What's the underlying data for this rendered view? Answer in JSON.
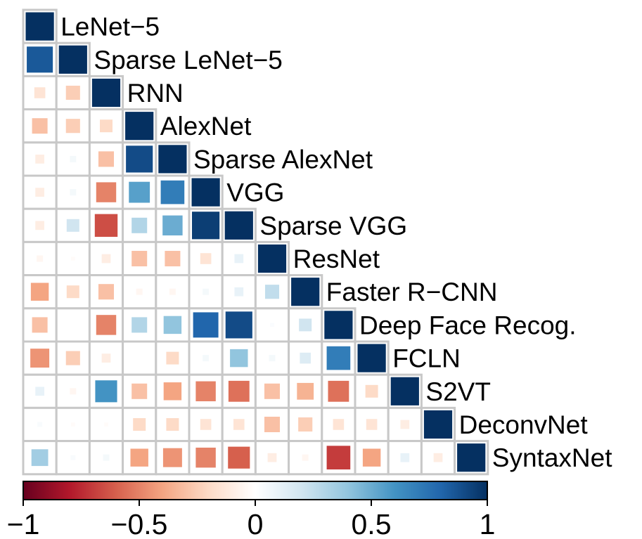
{
  "chart_data": {
    "type": "heatmap",
    "subtype": "correlation-matrix-lower-triangle",
    "title": "",
    "labels": [
      "LeNet−5",
      "Sparse LeNet−5",
      "RNN",
      "AlexNet",
      "Sparse AlexNet",
      "VGG",
      "Sparse VGG",
      "ResNet",
      "Faster R−CNN",
      "Deep Face Recog.",
      "FCLN",
      "S2VT",
      "DeconvNet",
      "SyntaxNet"
    ],
    "matrix": [
      [
        1
      ],
      [
        0.85,
        1
      ],
      [
        -0.15,
        -0.25,
        1
      ],
      [
        -0.3,
        -0.25,
        -0.2,
        1
      ],
      [
        -0.1,
        0.05,
        -0.3,
        0.9,
        1
      ],
      [
        -0.1,
        0.05,
        -0.5,
        0.55,
        0.7,
        1
      ],
      [
        -0.1,
        0.2,
        -0.65,
        0.3,
        0.5,
        0.95,
        1
      ],
      [
        -0.05,
        -0.02,
        -0.1,
        -0.3,
        -0.3,
        -0.15,
        0.1,
        1
      ],
      [
        -0.4,
        -0.2,
        -0.3,
        -0.05,
        -0.05,
        0.05,
        0.1,
        0.25,
        1
      ],
      [
        -0.3,
        0.0,
        -0.5,
        0.3,
        0.4,
        0.8,
        0.9,
        0.02,
        0.2,
        1
      ],
      [
        -0.45,
        -0.25,
        -0.1,
        0.0,
        -0.2,
        0.05,
        0.4,
        0.05,
        0.15,
        0.7,
        1
      ],
      [
        0.1,
        -0.05,
        0.6,
        -0.3,
        -0.4,
        -0.5,
        -0.55,
        -0.3,
        -0.35,
        -0.55,
        -0.2,
        1
      ],
      [
        0.03,
        -0.02,
        -0.02,
        -0.2,
        -0.2,
        -0.15,
        -0.15,
        -0.3,
        -0.25,
        -0.15,
        -0.15,
        -0.1,
        1
      ],
      [
        0.35,
        0.03,
        0.05,
        -0.4,
        -0.45,
        -0.5,
        -0.6,
        -0.1,
        -0.05,
        -0.7,
        -0.4,
        0.1,
        -0.1,
        1
      ]
    ],
    "colorbar": {
      "range": [
        -1,
        1
      ],
      "ticks": [
        -1,
        -0.5,
        0,
        0.5,
        1
      ],
      "tick_labels": [
        "−1",
        "−0.5",
        "0",
        "0.5",
        "1"
      ],
      "colors": [
        "#67001f",
        "#b2182b",
        "#d6604d",
        "#f4a582",
        "#fddbc7",
        "#ffffff",
        "#d1e5f0",
        "#92c5de",
        "#4393c3",
        "#2166ac",
        "#053061"
      ]
    },
    "legend_position": "bottom",
    "grid_color": "#c8c8c8"
  }
}
